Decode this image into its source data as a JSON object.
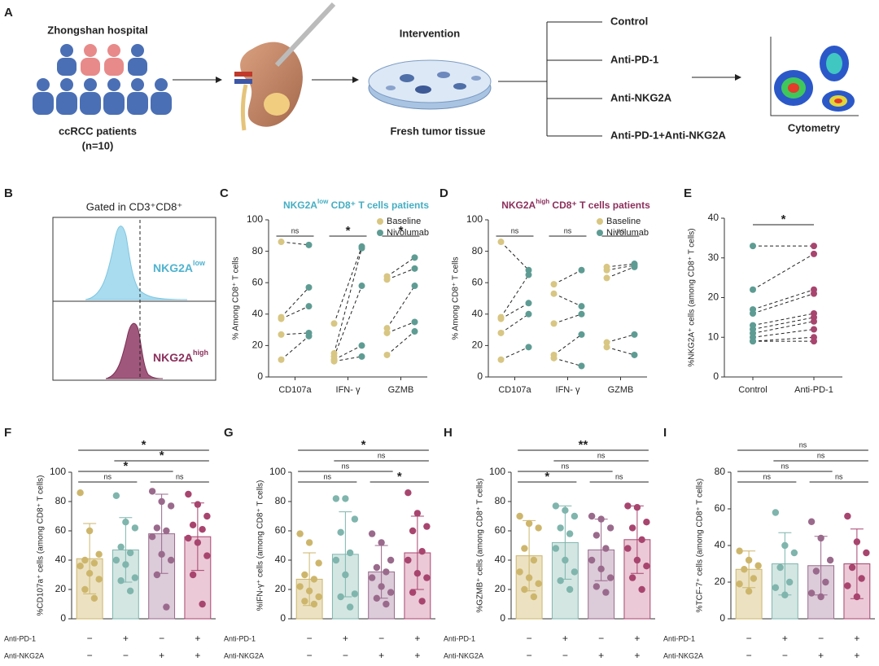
{
  "diagram": {
    "panel": "A",
    "hospital": "Zhongshan hospital",
    "patients": "ccRCC patients",
    "n": "(n=10)",
    "intervention": "Intervention",
    "tissue": "Fresh tumor tissue",
    "arms": [
      "Control",
      "Anti-PD-1",
      "Anti-NKG2A",
      "Anti-PD-1+Anti-NKG2A"
    ],
    "readout": "Cytometry"
  },
  "chart_data": [
    {
      "panel": "B",
      "type": "density",
      "title": "Gated in CD3⁺CD8⁺",
      "labels": [
        {
          "main": "NKG2A",
          "sup": "low",
          "color": "#4fb3cf"
        },
        {
          "main": "NKG2A",
          "sup": "high",
          "color": "#8b2f5c"
        }
      ]
    },
    {
      "panel": "C",
      "type": "paired",
      "title": {
        "main": "NKG2A",
        "sup": "low",
        "rest": " CD8⁺ T cells patients"
      },
      "title_color": "#45aec2",
      "y_label": "% Among CD8⁺ T cells",
      "categories": [
        "CD107a",
        "IFN- γ",
        "GZMB"
      ],
      "series": [
        {
          "name": "Baseline",
          "color": "#d8c683",
          "values": [
            [
              86,
              38,
              37,
              27,
              11
            ],
            [
              34,
              15,
              13,
              11,
              10
            ],
            [
              64,
              62,
              31,
              28,
              14
            ]
          ]
        },
        {
          "name": "Nivolumab",
          "color": "#5e9c93",
          "values": [
            [
              84,
              57,
              45,
              28,
              26
            ],
            [
              83,
              82,
              58,
              20,
              13
            ],
            [
              76,
              69,
              58,
              35,
              29
            ]
          ]
        }
      ],
      "significance": [
        "ns",
        "*",
        "*"
      ],
      "star_color": "#2e9e4f",
      "ylim": [
        0,
        100
      ],
      "yticks": [
        0,
        20,
        40,
        60,
        80,
        100
      ]
    },
    {
      "panel": "D",
      "type": "paired",
      "title": {
        "main": "NKG2A",
        "sup": "high",
        "rest": " CD8⁺ T cells patients"
      },
      "title_color": "#8b2f5c",
      "y_label": "% Among CD8⁺ T cells",
      "categories": [
        "CD107a",
        "IFN- γ",
        "GZMB"
      ],
      "series": [
        {
          "name": "Baseline",
          "color": "#d8c683",
          "values": [
            [
              86,
              38,
              37,
              28,
              11
            ],
            [
              59,
              53,
              34,
              14,
              12
            ],
            [
              70,
              68,
              63,
              22,
              19
            ]
          ]
        },
        {
          "name": "Nivolumab",
          "color": "#5e9c93",
          "values": [
            [
              68,
              65,
              47,
              40,
              19
            ],
            [
              68,
              45,
              40,
              27,
              7
            ],
            [
              72,
              71,
              70,
              27,
              14
            ]
          ]
        }
      ],
      "significance": [
        "ns",
        "ns",
        "ns"
      ],
      "star_color": "#2e9e4f",
      "ylim": [
        0,
        100
      ],
      "yticks": [
        0,
        20,
        40,
        60,
        80,
        100
      ]
    },
    {
      "panel": "E",
      "type": "paired-groups",
      "y_label": "%NKG2A⁺ cells (among CD8⁺ T cells)",
      "categories": [
        "Control",
        "Anti-PD-1"
      ],
      "colors": [
        "#5e9c93",
        "#a8456f"
      ],
      "values": [
        [
          33,
          22,
          17,
          16,
          13,
          12,
          11,
          10,
          9,
          9
        ],
        [
          33,
          31,
          22,
          21,
          16,
          15,
          14,
          12,
          10,
          9
        ]
      ],
      "significance": "*",
      "star_color": "#2e9e4f",
      "ylim": [
        0,
        40
      ],
      "yticks": [
        0,
        10,
        20,
        30,
        40
      ]
    },
    {
      "panel": "F",
      "type": "bar",
      "y_label": "%CD107a⁺ cells (among CD8⁺ T cells)",
      "values": [
        41,
        47,
        58,
        56
      ],
      "errors": [
        24,
        22,
        27,
        23
      ],
      "points": [
        [
          86,
          60,
          44,
          40,
          38,
          36,
          31,
          27,
          20,
          14
        ],
        [
          84,
          66,
          62,
          49,
          45,
          40,
          37,
          28,
          26,
          19
        ],
        [
          87,
          80,
          77,
          62,
          60,
          56,
          44,
          40,
          30,
          8
        ],
        [
          85,
          78,
          70,
          64,
          61,
          55,
          52,
          43,
          30,
          10
        ]
      ],
      "comparisons": [
        {
          "groups": [
            0,
            1
          ],
          "label": "ns"
        },
        {
          "groups": [
            2,
            3
          ],
          "label": "ns"
        },
        {
          "groups": [
            0,
            2
          ],
          "label": "*"
        },
        {
          "groups": [
            1,
            3
          ],
          "label": "*"
        },
        {
          "groups": [
            0,
            3
          ],
          "label": "*"
        }
      ],
      "ylim": [
        0,
        100
      ],
      "yticks": [
        0,
        20,
        40,
        60,
        80,
        100
      ]
    },
    {
      "panel": "G",
      "type": "bar",
      "y_label": "%IFN-γ⁺ cells (among CD8⁺ T cells)",
      "values": [
        27,
        44,
        32,
        45
      ],
      "errors": [
        18,
        29,
        18,
        25
      ],
      "points": [
        [
          58,
          52,
          38,
          30,
          27,
          22,
          19,
          15,
          12,
          10
        ],
        [
          82,
          82,
          68,
          59,
          45,
          40,
          30,
          17,
          15,
          8
        ],
        [
          58,
          52,
          40,
          35,
          32,
          28,
          22,
          18,
          14,
          10
        ],
        [
          86,
          72,
          63,
          60,
          46,
          40,
          31,
          28,
          18,
          12
        ]
      ],
      "comparisons": [
        {
          "groups": [
            0,
            1
          ],
          "label": "ns"
        },
        {
          "groups": [
            2,
            3
          ],
          "label": "*"
        },
        {
          "groups": [
            0,
            2
          ],
          "label": "ns"
        },
        {
          "groups": [
            1,
            3
          ],
          "label": "ns"
        },
        {
          "groups": [
            0,
            3
          ],
          "label": "*"
        }
      ],
      "ylim": [
        0,
        100
      ],
      "yticks": [
        0,
        20,
        40,
        60,
        80,
        100
      ]
    },
    {
      "panel": "H",
      "type": "bar",
      "y_label": "%GZMB⁺ cells (among CD8⁺ T cells)",
      "values": [
        43,
        52,
        47,
        54
      ],
      "errors": [
        24,
        25,
        21,
        23
      ],
      "points": [
        [
          70,
          65,
          62,
          48,
          40,
          32,
          28,
          24,
          20,
          15
        ],
        [
          77,
          74,
          70,
          62,
          58,
          48,
          40,
          32,
          26,
          20
        ],
        [
          70,
          68,
          62,
          57,
          48,
          40,
          34,
          28,
          22,
          18
        ],
        [
          77,
          76,
          66,
          62,
          54,
          48,
          40,
          36,
          28,
          20
        ]
      ],
      "comparisons": [
        {
          "groups": [
            0,
            1
          ],
          "label": "*"
        },
        {
          "groups": [
            2,
            3
          ],
          "label": "ns"
        },
        {
          "groups": [
            0,
            2
          ],
          "label": "ns"
        },
        {
          "groups": [
            1,
            3
          ],
          "label": "ns"
        },
        {
          "groups": [
            0,
            3
          ],
          "label": "**"
        }
      ],
      "ylim": [
        0,
        100
      ],
      "yticks": [
        0,
        20,
        40,
        60,
        80,
        100
      ]
    },
    {
      "panel": "I",
      "type": "bar",
      "y_label": "%TCF-7⁺ cells (among CD8⁺ T cells)",
      "values": [
        27,
        30,
        29,
        30
      ],
      "errors": [
        10,
        17,
        16,
        19
      ],
      "points": [
        [
          37,
          32,
          29,
          27,
          22,
          19,
          15
        ],
        [
          58,
          40,
          36,
          28,
          20,
          17,
          13
        ],
        [
          53,
          44,
          32,
          26,
          20,
          14,
          12
        ],
        [
          56,
          42,
          36,
          28,
          22,
          18,
          12
        ]
      ],
      "comparisons": [
        {
          "groups": [
            0,
            1
          ],
          "label": "ns"
        },
        {
          "groups": [
            2,
            3
          ],
          "label": "ns"
        },
        {
          "groups": [
            0,
            2
          ],
          "label": "ns"
        },
        {
          "groups": [
            1,
            3
          ],
          "label": "ns"
        },
        {
          "groups": [
            0,
            3
          ],
          "label": "ns"
        }
      ],
      "ylim": [
        0,
        80
      ],
      "yticks": [
        0,
        20,
        40,
        60,
        80
      ]
    }
  ],
  "bar_settings": {
    "colors": [
      "#ece2c2",
      "#d3e6e2",
      "#dccbd9",
      "#ebc9d6"
    ],
    "point_colors": [
      "#cdb66c",
      "#7fb5ad",
      "#9a6a8c",
      "#a8456f"
    ],
    "edge_colors": [
      "#cdb66c",
      "#7fb5ad",
      "#9a6a8c",
      "#a8456f"
    ],
    "star_color": "#2e9e4f",
    "row_labels": [
      "Anti-PD-1",
      "Anti-NKG2A"
    ],
    "row_values": [
      [
        "−",
        "+",
        "−",
        "+"
      ],
      [
        "−",
        "−",
        "+",
        "+"
      ]
    ]
  }
}
